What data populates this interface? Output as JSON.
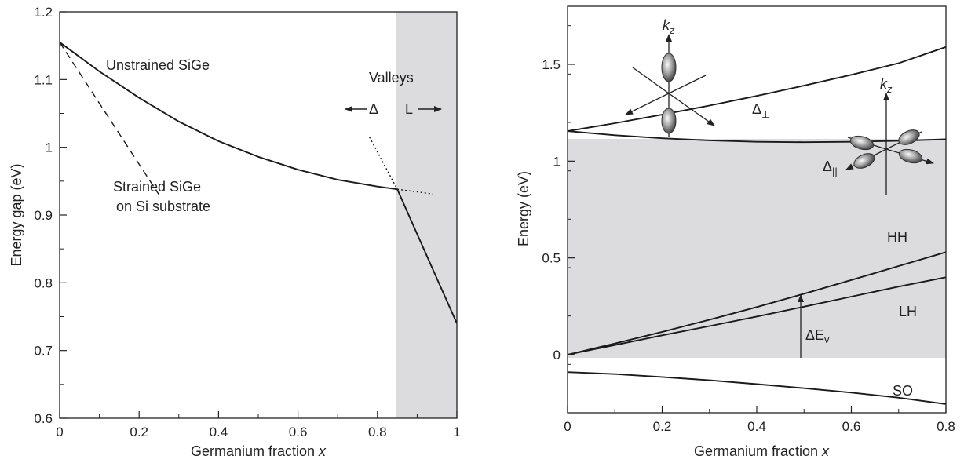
{
  "chart_data": [
    {
      "type": "line",
      "xlabel": "Germanium fraction x",
      "ylabel": "Energy gap (eV)",
      "xlim": [
        0,
        1
      ],
      "ylim": [
        0.6,
        1.2
      ],
      "x_ticks": [
        0,
        0.2,
        0.4,
        0.6,
        0.8,
        1
      ],
      "x_tick_labels": [
        "0",
        "0.2",
        "0.4",
        "0.6",
        "0.8",
        "1"
      ],
      "y_ticks": [
        0.6,
        0.7,
        0.8,
        0.9,
        1.0,
        1.1,
        1.2
      ],
      "y_tick_labels": [
        "0.6",
        "0.7",
        "0.8",
        "0.9",
        "1",
        "1.1",
        "1.2"
      ],
      "shaded_region": {
        "x": [
          0.85,
          1.0
        ],
        "label": "L"
      },
      "series": [
        {
          "name": "Unstrained SiGe",
          "style": "solid",
          "x": [
            0,
            0.1,
            0.2,
            0.3,
            0.4,
            0.5,
            0.6,
            0.7,
            0.8,
            0.85,
            0.9,
            0.95,
            1.0
          ],
          "y": [
            1.155,
            1.112,
            1.073,
            1.038,
            1.009,
            0.986,
            0.967,
            0.952,
            0.942,
            0.938,
            0.872,
            0.806,
            0.74
          ]
        },
        {
          "name": "Strained SiGe on Si substrate",
          "style": "dashed",
          "x": [
            0,
            0.05,
            0.1,
            0.15,
            0.2,
            0.25
          ],
          "y": [
            1.155,
            1.11,
            1.065,
            1.02,
            0.975,
            0.93
          ]
        },
        {
          "name": "",
          "style": "dotted",
          "x": [
            0.78,
            0.85
          ],
          "y": [
            1.015,
            0.938
          ]
        },
        {
          "name": "",
          "style": "dotted",
          "x": [
            0.85,
            0.94
          ],
          "y": [
            0.938,
            0.931
          ]
        }
      ],
      "annotations": {
        "unstrained": "Unstrained SiGe",
        "strained_1": "Strained SiGe",
        "strained_2": "on Si substrate",
        "valleys": "Valleys",
        "delta": "Δ",
        "l_valley": "L"
      }
    },
    {
      "type": "line",
      "xlabel": "Germanium fraction x",
      "ylabel": "Energy (eV)",
      "xlim": [
        0,
        0.8
      ],
      "ylim": [
        -0.3,
        1.8
      ],
      "x_ticks": [
        0,
        0.2,
        0.4,
        0.6,
        0.8
      ],
      "x_tick_labels": [
        "0",
        "0.2",
        "0.4",
        "0.6",
        "0.8"
      ],
      "y_ticks": [
        0,
        0.5,
        1,
        1.5
      ],
      "y_tick_labels": [
        "0",
        "0.5",
        "1",
        "1.5"
      ],
      "shaded_region": {
        "y": [
          0,
          1.155
        ]
      },
      "series": [
        {
          "name": "Δ⊥",
          "x": [
            0,
            0.1,
            0.2,
            0.3,
            0.4,
            0.5,
            0.6,
            0.7,
            0.8
          ],
          "y": [
            1.155,
            1.196,
            1.24,
            1.287,
            1.337,
            1.39,
            1.446,
            1.506,
            1.59
          ]
        },
        {
          "name": "Δ||",
          "x": [
            0,
            0.1,
            0.2,
            0.3,
            0.4,
            0.5,
            0.6,
            0.7,
            0.8
          ],
          "y": [
            1.155,
            1.134,
            1.118,
            1.107,
            1.1,
            1.098,
            1.1,
            1.105,
            1.113
          ]
        },
        {
          "name": "HH",
          "x": [
            0,
            0.1,
            0.2,
            0.3,
            0.4,
            0.5,
            0.6,
            0.7,
            0.8
          ],
          "y": [
            0,
            0.058,
            0.118,
            0.181,
            0.246,
            0.315,
            0.386,
            0.458,
            0.53
          ]
        },
        {
          "name": "LH",
          "x": [
            0,
            0.1,
            0.2,
            0.3,
            0.4,
            0.5,
            0.6,
            0.7,
            0.8
          ],
          "y": [
            0,
            0.05,
            0.1,
            0.148,
            0.197,
            0.248,
            0.3,
            0.352,
            0.4
          ]
        },
        {
          "name": "SO",
          "x": [
            0,
            0.1,
            0.2,
            0.3,
            0.4,
            0.5,
            0.6,
            0.7,
            0.8
          ],
          "y": [
            -0.09,
            -0.1,
            -0.115,
            -0.132,
            -0.152,
            -0.173,
            -0.196,
            -0.222,
            -0.255
          ]
        }
      ],
      "annotations": {
        "kz_top": "k",
        "kz_right": "k",
        "kz_sub": "z",
        "delta_perp": "Δ",
        "perp_sub": "⊥",
        "delta_par": "Δ",
        "par_sub": "||",
        "hh": "HH",
        "lh": "LH",
        "so": "SO",
        "dev": "ΔE",
        "dev_sub": "v"
      }
    }
  ]
}
